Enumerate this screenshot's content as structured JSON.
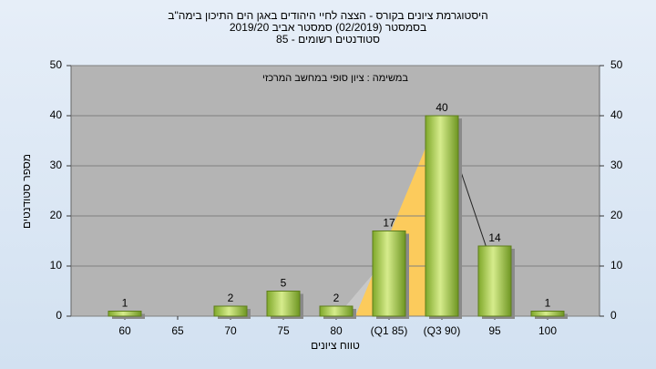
{
  "chart_data": {
    "type": "bar",
    "title": [
      "היסטוגרמת ציונים בקורס - הצצה לחיי היהודים באגן הים התיכון בימה\"ב",
      "בסמסטר  (02/2019)  סמסטר אביב 2019/20",
      "סטודנטים רשומים - 85"
    ],
    "subtitle": "במשימה : ציון סופי במחשב המרכזי",
    "x_label": "טווח ציונים",
    "y_label": "מספר סטודנטים",
    "categories": [
      "60",
      "65",
      "70",
      "75",
      "80",
      "(Q1 85)",
      "(Q3 90)",
      "95",
      "100"
    ],
    "values": [
      1,
      null,
      2,
      5,
      2,
      17,
      40,
      14,
      1
    ],
    "color": "#9cc43c",
    "ylim": [
      0,
      50
    ],
    "yticks": [
      0,
      10,
      20,
      30,
      40,
      50
    ],
    "grid": true
  }
}
